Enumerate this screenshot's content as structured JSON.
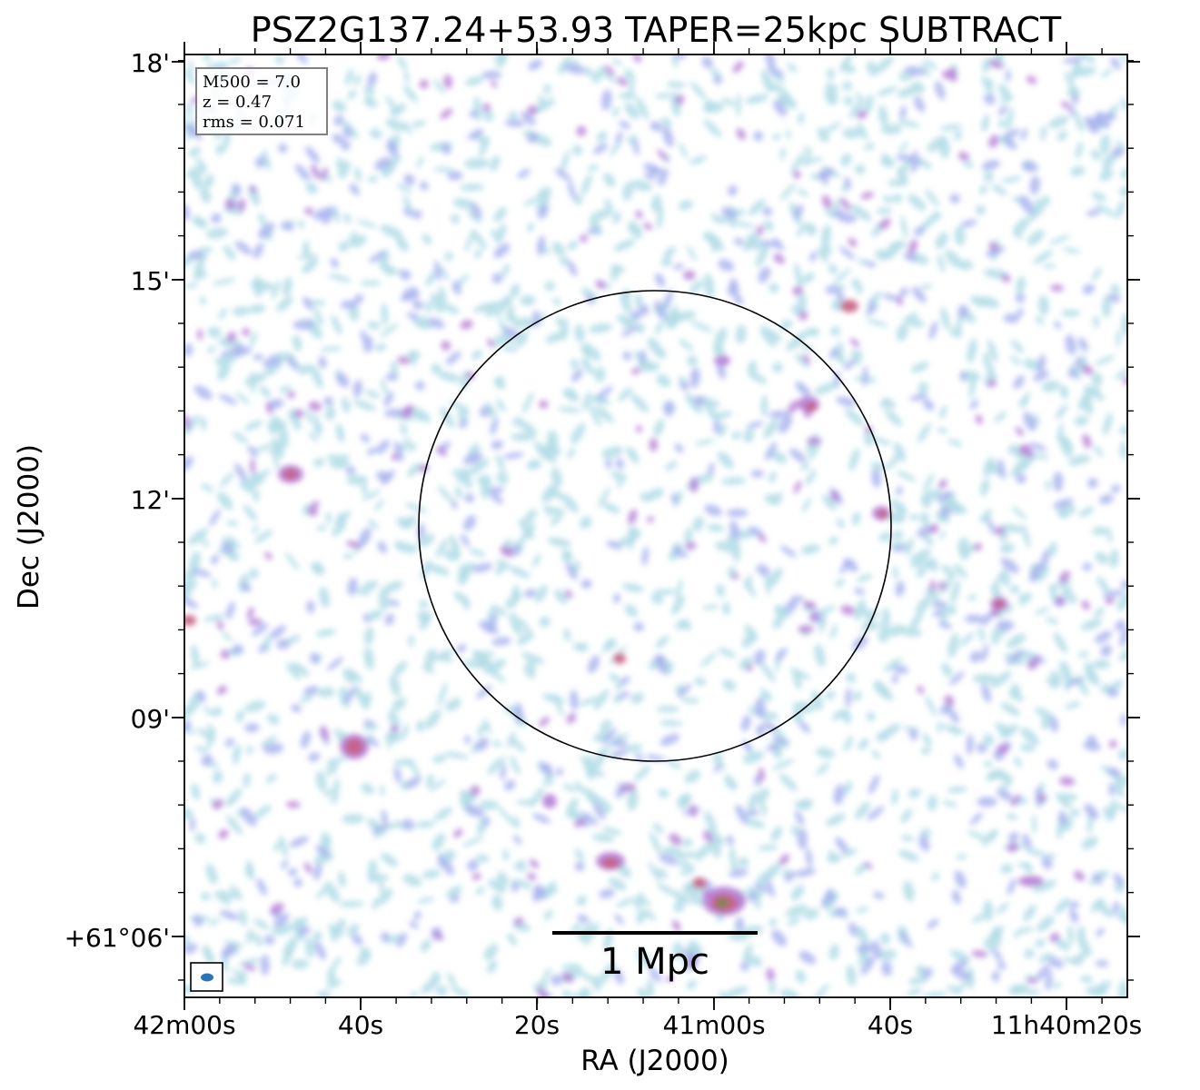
{
  "chart_data": {
    "type": "heatmap",
    "title": "PSZ2G137.24+53.93 TAPER=25kpc SUBTRACT",
    "xlabel": "RA (J2000)",
    "ylabel": "Dec (J2000)",
    "x_ticks": [
      "42m00s",
      "40s",
      "20s",
      "41m00s",
      "40s",
      "11h40m20s"
    ],
    "y_ticks": [
      "+61°06'",
      "09'",
      "12'",
      "15'",
      "18'"
    ],
    "info_box": [
      "M500 = 7.0",
      "z = 0.47",
      "rms = 0.071"
    ],
    "scale_bar_label": "1 Mpc",
    "colors": {
      "faint": "#b3dde6",
      "low": "#a7b2ee",
      "mid": "#b57fd6",
      "high": "#c75f82",
      "peak": "#6f8a3a",
      "beam": "#2a73b8"
    },
    "grid": false
  }
}
